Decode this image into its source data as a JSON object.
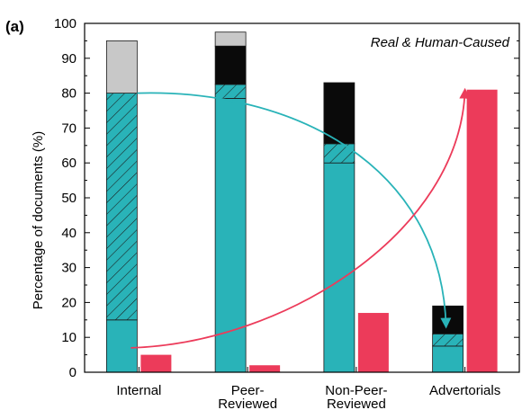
{
  "chart_data": {
    "type": "bar",
    "panel_label": "(a)",
    "annotation": "Real & Human-Caused",
    "ylabel": "Percentage of documents (%)",
    "xlabel": "",
    "ylim": [
      0,
      100
    ],
    "yticks": [
      0,
      10,
      20,
      30,
      40,
      50,
      60,
      70,
      80,
      90,
      100
    ],
    "grid": false,
    "categories": [
      [
        "Internal"
      ],
      [
        "Peer-",
        "Reviewed"
      ],
      [
        "Non-Peer-",
        "Reviewed"
      ],
      [
        "Advertorials"
      ]
    ],
    "stacked_bar": {
      "segments": [
        {
          "key": "teal",
          "color": "#29b3b8",
          "pattern": "solid",
          "values": [
            15,
            78.5,
            60,
            7.5
          ]
        },
        {
          "key": "teal_hatched",
          "color": "#29b3b8",
          "pattern": "hatched",
          "values": [
            65,
            4,
            5.5,
            3.5
          ]
        },
        {
          "key": "black",
          "color": "#0a0a0a",
          "pattern": "solid",
          "values": [
            0,
            11,
            17.5,
            8
          ]
        },
        {
          "key": "grey",
          "color": "#c8c8c8",
          "pattern": "solid",
          "values": [
            15,
            4,
            0,
            0
          ]
        }
      ]
    },
    "red_bar": {
      "color": "#ec3b5a",
      "values": [
        5,
        2,
        17,
        81
      ]
    },
    "arrows": [
      {
        "color": "#29b3b8",
        "from": {
          "category": 0,
          "y": 80
        },
        "to": {
          "category": 3,
          "y": 13
        }
      },
      {
        "color": "#ec3b5a",
        "from": {
          "category": 0,
          "y": 7
        },
        "to": {
          "category": 3,
          "y": 81
        }
      }
    ]
  }
}
